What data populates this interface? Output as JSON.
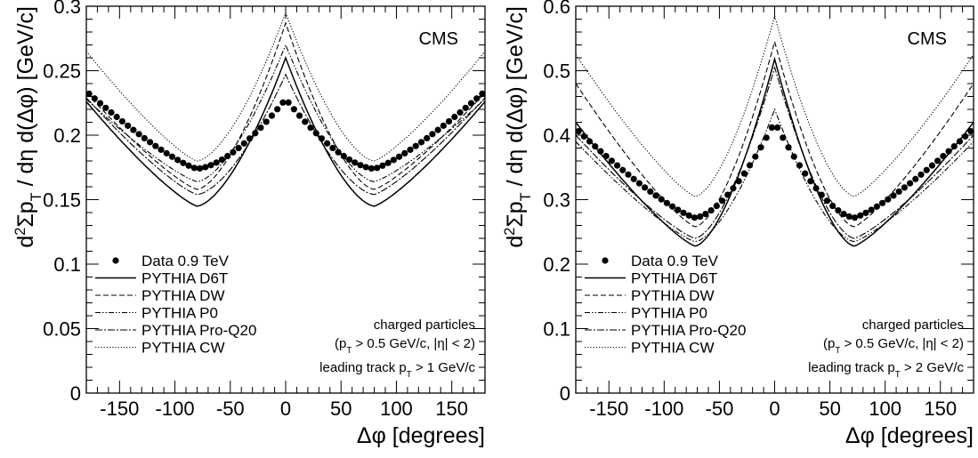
{
  "chart_data": [
    {
      "type": "line",
      "tag": "CMS",
      "xlabel": "Δφ [degrees]",
      "ylabel": "d²Σp_T / dη d(Δφ) [GeV/c]",
      "xlim": [
        -180,
        180
      ],
      "ylim": [
        0,
        0.3
      ],
      "xticks": [
        -150,
        -100,
        -50,
        0,
        50,
        100,
        150
      ],
      "xtick_labels": [
        "-150",
        "-100",
        "-50",
        "0",
        "50",
        "100",
        "150"
      ],
      "yticks": [
        0,
        0.05,
        0.1,
        0.15,
        0.2,
        0.25,
        0.3
      ],
      "ytick_labels": [
        "0",
        "0.05",
        "0.1",
        "0.15",
        "0.2",
        "0.25",
        "0.3"
      ],
      "annotations": [
        "charged particles",
        "(p_T > 0.5 GeV/c, |η| < 2)",
        "leading track p_T > 1 GeV/c"
      ],
      "legend_position": "bottom-left",
      "series": [
        {
          "name": "Data 0.9 TeV",
          "style": "markers",
          "curve": {
            "edge": 0.234,
            "valley": 0.174,
            "valley_x": 80,
            "peak": 0.228
          }
        },
        {
          "name": "PYTHIA D6T",
          "style": "solid",
          "curve": {
            "edge": 0.226,
            "valley": 0.145,
            "valley_x": 80,
            "peak": 0.26
          }
        },
        {
          "name": "PYTHIA DW",
          "style": "dashed",
          "curve": {
            "edge": 0.233,
            "valley": 0.158,
            "valley_x": 80,
            "peak": 0.287
          }
        },
        {
          "name": "PYTHIA P0",
          "style": "dash-dot-dot",
          "curve": {
            "edge": 0.228,
            "valley": 0.164,
            "valley_x": 80,
            "peak": 0.27
          }
        },
        {
          "name": "PYTHIA Pro-Q20",
          "style": "dash-dot",
          "curve": {
            "edge": 0.229,
            "valley": 0.154,
            "valley_x": 80,
            "peak": 0.247
          }
        },
        {
          "name": "PYTHIA CW",
          "style": "dotted",
          "curve": {
            "edge": 0.265,
            "valley": 0.18,
            "valley_x": 80,
            "peak": 0.295
          }
        }
      ]
    },
    {
      "type": "line",
      "tag": "CMS",
      "xlabel": "Δφ [degrees]",
      "ylabel": "d²Σp_T / dη d(Δφ) [GeV/c]",
      "xlim": [
        -180,
        180
      ],
      "ylim": [
        0,
        0.6
      ],
      "xticks": [
        -150,
        -100,
        -50,
        0,
        50,
        100,
        150
      ],
      "xtick_labels": [
        "-150",
        "-100",
        "-50",
        "0",
        "50",
        "100",
        "150"
      ],
      "yticks": [
        0,
        0.1,
        0.2,
        0.3,
        0.4,
        0.5,
        0.6
      ],
      "ytick_labels": [
        "0",
        "0.1",
        "0.2",
        "0.3",
        "0.4",
        "0.5",
        "0.6"
      ],
      "annotations": [
        "charged particles",
        "(p_T > 0.5 GeV/c, |η| < 2)",
        "leading track p_T > 2 GeV/c"
      ],
      "legend_position": "bottom-left",
      "series": [
        {
          "name": "Data 0.9 TeV",
          "style": "markers",
          "curve": {
            "edge": 0.41,
            "valley": 0.272,
            "valley_x": 72,
            "peak": 0.42
          }
        },
        {
          "name": "PYTHIA D6T",
          "style": "solid",
          "curve": {
            "edge": 0.42,
            "valley": 0.228,
            "valley_x": 72,
            "peak": 0.518
          }
        },
        {
          "name": "PYTHIA DW",
          "style": "dashed",
          "curve": {
            "edge": 0.48,
            "valley": 0.258,
            "valley_x": 72,
            "peak": 0.545
          }
        },
        {
          "name": "PYTHIA P0",
          "style": "dash-dot-dot",
          "curve": {
            "edge": 0.39,
            "valley": 0.235,
            "valley_x": 72,
            "peak": 0.44
          }
        },
        {
          "name": "PYTHIA Pro-Q20",
          "style": "dash-dot",
          "curve": {
            "edge": 0.4,
            "valley": 0.24,
            "valley_x": 72,
            "peak": 0.505
          }
        },
        {
          "name": "PYTHIA CW",
          "style": "dotted",
          "curve": {
            "edge": 0.525,
            "valley": 0.305,
            "valley_x": 72,
            "peak": 0.585
          }
        }
      ]
    }
  ]
}
